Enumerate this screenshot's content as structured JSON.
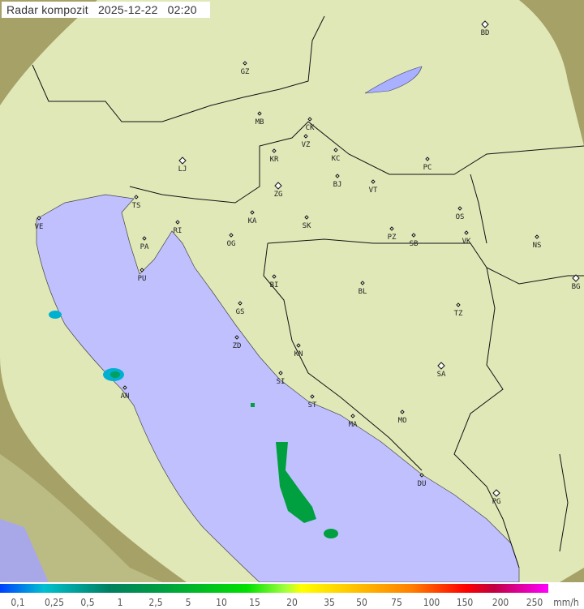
{
  "title": {
    "label": "Radar kompozit",
    "date": "2025-12-22",
    "time": "02:20"
  },
  "colors": {
    "sea": "#c0c0ff",
    "land": "#d8e0a8",
    "outside": "#8c8a58",
    "coverage_overlay": "#e8f0c8",
    "rain_light": "#00b0d0",
    "rain_moderate": "#00a040"
  },
  "cities": [
    {
      "code": "BD",
      "capital": true
    },
    {
      "code": "GZ"
    },
    {
      "code": "MB"
    },
    {
      "code": "CK"
    },
    {
      "code": "VZ"
    },
    {
      "code": "KR"
    },
    {
      "code": "KC"
    },
    {
      "code": "PC"
    },
    {
      "code": "LJ",
      "capital": true
    },
    {
      "code": "ZG",
      "capital": true
    },
    {
      "code": "BJ"
    },
    {
      "code": "VT"
    },
    {
      "code": "TS"
    },
    {
      "code": "VE"
    },
    {
      "code": "RI"
    },
    {
      "code": "KA"
    },
    {
      "code": "SK"
    },
    {
      "code": "OS"
    },
    {
      "code": "PA"
    },
    {
      "code": "OG"
    },
    {
      "code": "PZ"
    },
    {
      "code": "SB"
    },
    {
      "code": "VK"
    },
    {
      "code": "NS"
    },
    {
      "code": "PU"
    },
    {
      "code": "BI"
    },
    {
      "code": "BL"
    },
    {
      "code": "BG",
      "capital": true
    },
    {
      "code": "GS"
    },
    {
      "code": "TZ"
    },
    {
      "code": "ZD"
    },
    {
      "code": "KN"
    },
    {
      "code": "SA",
      "capital": true
    },
    {
      "code": "SI"
    },
    {
      "code": "AN"
    },
    {
      "code": "ST"
    },
    {
      "code": "MO"
    },
    {
      "code": "MA"
    },
    {
      "code": "DU"
    },
    {
      "code": "PG",
      "capital": true
    }
  ],
  "legend": {
    "unit": "mm/h",
    "ticks": [
      "0,1",
      "0,25",
      "0,5",
      "1",
      "2,5",
      "5",
      "10",
      "15",
      "20",
      "35",
      "50",
      "75",
      "100",
      "150",
      "200",
      "250"
    ]
  }
}
